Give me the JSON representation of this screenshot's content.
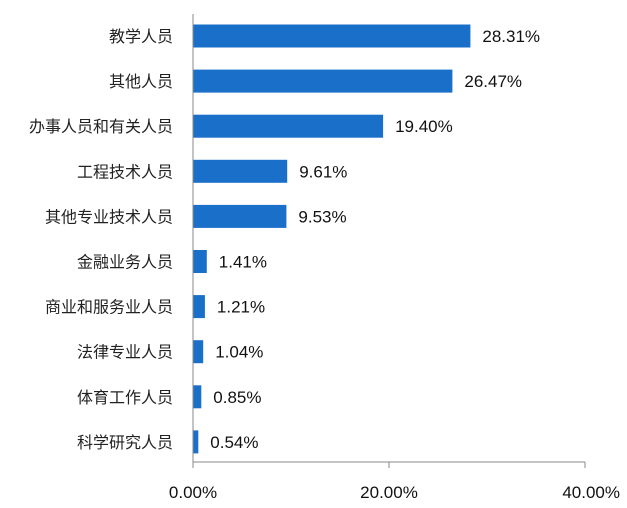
{
  "chart_data": {
    "type": "bar",
    "orientation": "horizontal",
    "categories": [
      "教学人员",
      "其他人员",
      "办事人员和有关人员",
      "工程技术人员",
      "其他专业技术人员",
      "金融业务人员",
      "商业和服务业人员",
      "法律专业人员",
      "体育工作人员",
      "科学研究人员"
    ],
    "values": [
      28.31,
      26.47,
      19.4,
      9.61,
      9.53,
      1.41,
      1.21,
      1.04,
      0.85,
      0.54
    ],
    "value_labels": [
      "28.31%",
      "26.47%",
      "19.40%",
      "9.61%",
      "9.53%",
      "1.41%",
      "1.21%",
      "1.04%",
      "0.85%",
      "0.54%"
    ],
    "xlim": [
      0,
      40
    ],
    "xticks": [
      0,
      20,
      40
    ],
    "xtick_labels": [
      "0.00%",
      "20.00%",
      "40.00%"
    ],
    "grid": false,
    "bar_color": "#1a6fc9"
  }
}
